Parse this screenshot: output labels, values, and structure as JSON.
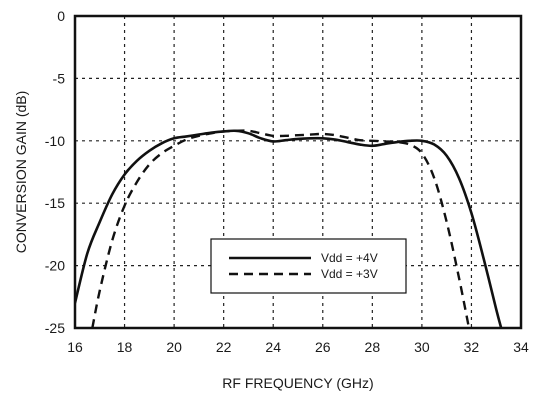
{
  "chart_data": {
    "type": "line",
    "title": "",
    "xlabel": "RF FREQUENCY (GHz)",
    "ylabel": "CONVERSION GAIN (dB)",
    "xlim": [
      16,
      34
    ],
    "ylim": [
      -25,
      0
    ],
    "xticks": [
      16,
      18,
      20,
      22,
      24,
      26,
      28,
      30,
      32,
      34
    ],
    "yticks": [
      0,
      -5,
      -10,
      -15,
      -20,
      -25
    ],
    "xtick_labels": [
      "16",
      "18",
      "20",
      "22",
      "24",
      "26",
      "28",
      "30",
      "32",
      "34"
    ],
    "ytick_labels": [
      "0",
      "-5",
      "-10",
      "-15",
      "-20",
      "-25"
    ],
    "grid": true,
    "legend_position": "center-bottom",
    "series": [
      {
        "name": "Vdd = +4V",
        "color": "#111111",
        "style": "solid",
        "x": [
          16.0,
          16.5,
          17.0,
          17.5,
          18.0,
          18.5,
          19.0,
          19.5,
          20.0,
          20.5,
          21.0,
          21.5,
          22.0,
          22.5,
          23.0,
          23.5,
          24.0,
          24.5,
          25.0,
          25.5,
          26.0,
          26.5,
          27.0,
          27.5,
          28.0,
          28.5,
          29.0,
          29.5,
          30.0,
          30.5,
          31.0,
          31.5,
          32.0,
          32.5,
          33.0,
          33.2
        ],
        "y": [
          -23.0,
          -19.0,
          -16.5,
          -14.3,
          -12.7,
          -11.6,
          -10.8,
          -10.2,
          -9.8,
          -9.65,
          -9.5,
          -9.35,
          -9.25,
          -9.2,
          -9.4,
          -9.8,
          -10.05,
          -9.95,
          -9.85,
          -9.8,
          -9.8,
          -9.9,
          -10.1,
          -10.3,
          -10.4,
          -10.25,
          -10.1,
          -10.0,
          -10.0,
          -10.3,
          -11.2,
          -13.0,
          -15.8,
          -19.5,
          -23.5,
          -25.0
        ]
      },
      {
        "name": "Vdd = +3V",
        "color": "#111111",
        "style": "dashed",
        "x": [
          16.7,
          17.0,
          17.5,
          18.0,
          18.5,
          19.0,
          19.5,
          20.0,
          20.5,
          21.0,
          21.5,
          22.0,
          22.5,
          23.0,
          23.5,
          24.0,
          24.5,
          25.0,
          25.5,
          26.0,
          26.5,
          27.0,
          27.5,
          28.0,
          28.5,
          29.0,
          29.5,
          30.0,
          30.5,
          31.0,
          31.5,
          31.9
        ],
        "y": [
          -25.0,
          -22.0,
          -18.0,
          -15.2,
          -13.3,
          -11.9,
          -11.0,
          -10.4,
          -9.9,
          -9.6,
          -9.4,
          -9.25,
          -9.2,
          -9.2,
          -9.4,
          -9.6,
          -9.6,
          -9.55,
          -9.5,
          -9.45,
          -9.55,
          -9.75,
          -9.95,
          -10.0,
          -10.05,
          -10.1,
          -10.3,
          -11.0,
          -13.0,
          -16.5,
          -21.0,
          -25.0
        ]
      }
    ]
  }
}
